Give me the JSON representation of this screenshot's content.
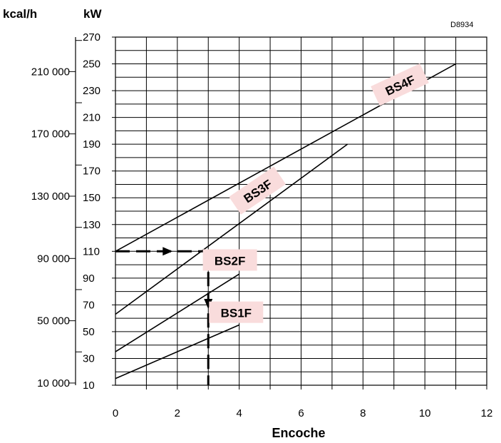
{
  "chart_data": {
    "type": "line",
    "figure_code": "D8934",
    "xlabel": "Encoche",
    "ylabel_left": "kcal/h",
    "ylabel_right": "kW",
    "xlim": [
      0,
      12
    ],
    "ylim": [
      10,
      270
    ],
    "x_ticks": [
      "0",
      "2",
      "4",
      "6",
      "8",
      "10",
      "12"
    ],
    "y_ticks_kw": [
      "10",
      "30",
      "50",
      "70",
      "90",
      "110",
      "130",
      "150",
      "170",
      "190",
      "210",
      "230",
      "250",
      "270"
    ],
    "y_ticks_kcal": [
      {
        "label": "10 000",
        "kw": 11.6
      },
      {
        "label": "50 000",
        "kw": 58.1
      },
      {
        "label": "90 000",
        "kw": 104.7
      },
      {
        "label": "130 000",
        "kw": 151.2
      },
      {
        "label": "170 000",
        "kw": 197.7
      },
      {
        "label": "210 000",
        "kw": 244.2
      }
    ],
    "grid": true,
    "series": [
      {
        "name": "BS1F",
        "x": [
          0,
          4
        ],
        "y": [
          15,
          55
        ]
      },
      {
        "name": "BS2F",
        "x": [
          0,
          4
        ],
        "y": [
          35,
          93
        ]
      },
      {
        "name": "BS3F",
        "x": [
          0,
          7.5
        ],
        "y": [
          63,
          190
        ]
      },
      {
        "name": "BS4F",
        "x": [
          0,
          11
        ],
        "y": [
          110,
          250
        ]
      }
    ],
    "example": {
      "x": 3,
      "y": 110
    }
  }
}
